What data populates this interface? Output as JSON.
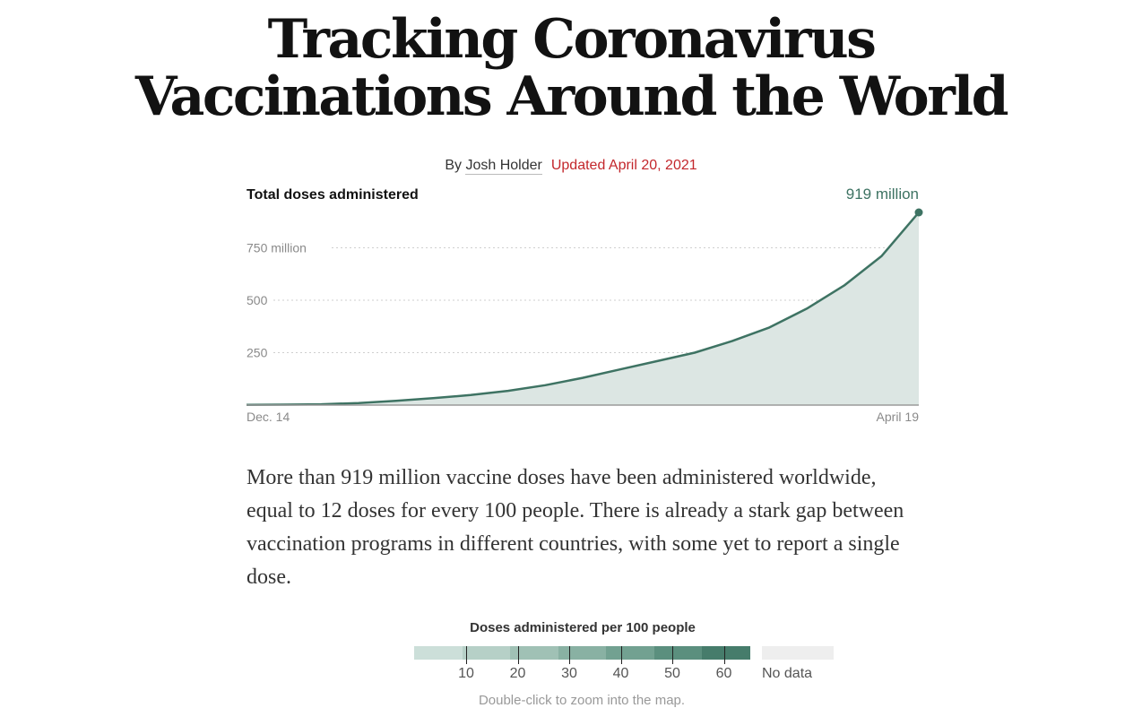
{
  "headline": {
    "line1": "Tracking Coronavirus",
    "line2": "Vaccinations Around the World"
  },
  "byline": {
    "prefix": "By ",
    "author": "Josh Holder",
    "updated": "Updated April 20, 2021"
  },
  "chart_data": {
    "type": "area",
    "title": "Total doses administered",
    "xlabel": "",
    "ylabel": "",
    "x_start_label": "Dec. 14",
    "x_end_label": "April 19",
    "end_label": "919 million",
    "y_ticks": [
      {
        "value": 250,
        "label": "250"
      },
      {
        "value": 500,
        "label": "500"
      },
      {
        "value": 750,
        "label": "750 million"
      }
    ],
    "ylim": [
      0,
      850
    ],
    "grid": true,
    "x": [
      "2020-12-14",
      "2020-12-21",
      "2020-12-28",
      "2021-01-04",
      "2021-01-11",
      "2021-01-18",
      "2021-01-25",
      "2021-02-01",
      "2021-02-08",
      "2021-02-15",
      "2021-02-22",
      "2021-03-01",
      "2021-03-08",
      "2021-03-15",
      "2021-03-22",
      "2021-03-29",
      "2021-04-05",
      "2021-04-12",
      "2021-04-19"
    ],
    "values": [
      1,
      2,
      4,
      10,
      20,
      33,
      48,
      68,
      95,
      130,
      170,
      210,
      250,
      305,
      370,
      460,
      570,
      710,
      919
    ],
    "colors": {
      "line": "#3e7363",
      "fill": "#dce6e3",
      "grid": "#cfcfcf",
      "baseline": "#9a9a9a"
    }
  },
  "summary": "More than 919 million vaccine doses have been administered worldwide, equal to 12 doses for every 100 people. There is already a stark gap between vaccination programs in different countries, with some yet to report a single dose.",
  "legend": {
    "title": "Doses administered per 100 people",
    "ticks": [
      "10",
      "20",
      "30",
      "40",
      "50",
      "60"
    ],
    "colors": [
      "#ccdfd9",
      "#b6d0c7",
      "#a0c1b5",
      "#89b1a3",
      "#72a191",
      "#5b8f7e",
      "#467c6b"
    ],
    "no_data_label": "No data",
    "no_data_color": "#eeeeee"
  },
  "map_hint": "Double-click to zoom into the map."
}
